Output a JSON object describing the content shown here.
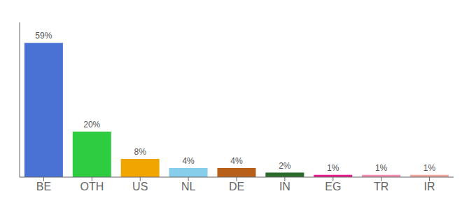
{
  "chart_data": {
    "type": "bar",
    "categories": [
      "BE",
      "OTH",
      "US",
      "NL",
      "DE",
      "IN",
      "EG",
      "TR",
      "IR"
    ],
    "values": [
      59,
      20,
      8,
      4,
      4,
      2,
      1,
      1,
      1
    ],
    "value_labels": [
      "59%",
      "20%",
      "8%",
      "4%",
      "4%",
      "2%",
      "1%",
      "1%",
      "1%"
    ],
    "data_labels": true,
    "colors": [
      "#4a72d4",
      "#2ecc40",
      "#f0a500",
      "#87ceeb",
      "#b8601a",
      "#2d6a2d",
      "#e91e8c",
      "#f48fb1",
      "#f4a9a0"
    ],
    "ylim": [
      0,
      68
    ],
    "tick_labels": "x",
    "grid": false
  }
}
